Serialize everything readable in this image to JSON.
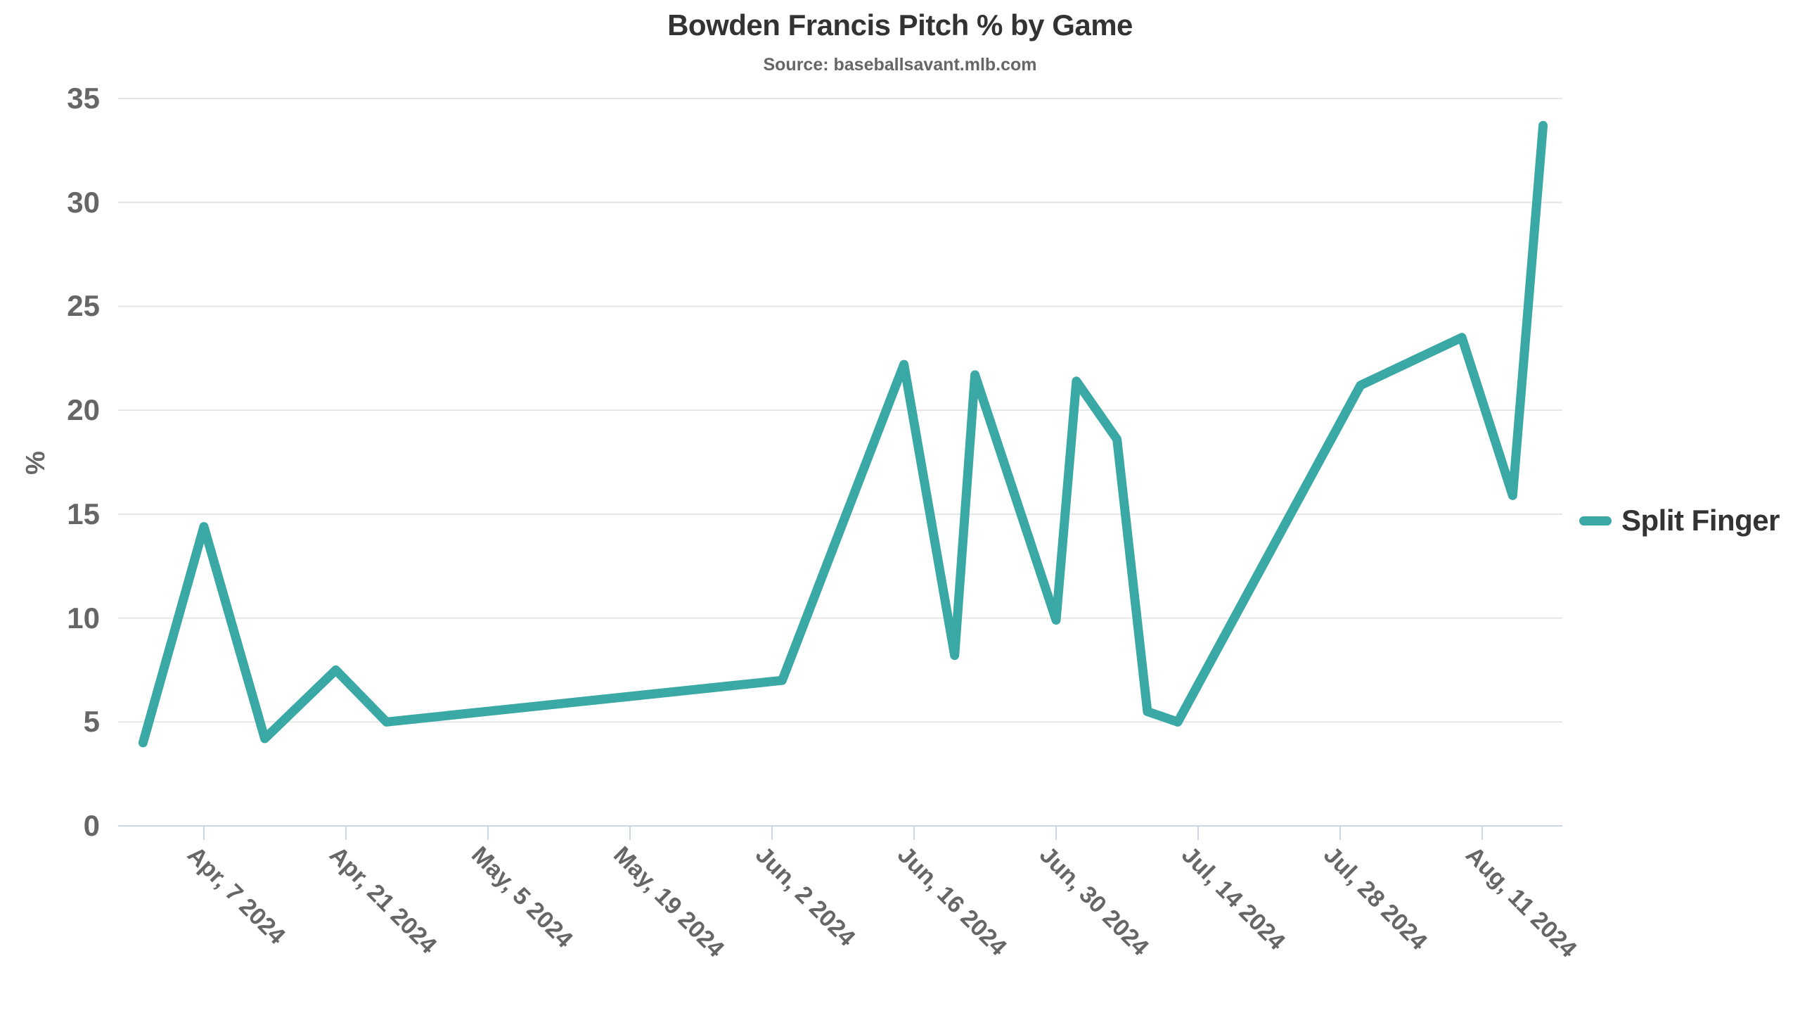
{
  "title": "Bowden Francis Pitch % by Game",
  "subtitle": "Source: baseballsavant.mlb.com",
  "legend": {
    "label": "Split Finger"
  },
  "colors": {
    "series": "#3AA9A5",
    "title_text": "#333333",
    "axis_text": "#666666",
    "grid_line": "#E6E6E6",
    "axis_line": "#CCD6EB"
  },
  "y_axis": {
    "title": "%",
    "ticks": [
      0,
      5,
      10,
      15,
      20,
      25,
      30,
      35
    ]
  },
  "x_axis": {
    "ticks": [
      {
        "date": "2024-04-07",
        "label": "Apr, 7 2024"
      },
      {
        "date": "2024-04-21",
        "label": "Apr, 21 2024"
      },
      {
        "date": "2024-05-05",
        "label": "May, 5 2024"
      },
      {
        "date": "2024-05-19",
        "label": "May, 19 2024"
      },
      {
        "date": "2024-06-02",
        "label": "Jun, 2 2024"
      },
      {
        "date": "2024-06-16",
        "label": "Jun, 16 2024"
      },
      {
        "date": "2024-06-30",
        "label": "Jun, 30 2024"
      },
      {
        "date": "2024-07-14",
        "label": "Jul, 14 2024"
      },
      {
        "date": "2024-07-28",
        "label": "Jul, 28 2024"
      },
      {
        "date": "2024-08-11",
        "label": "Aug, 11 2024"
      }
    ]
  },
  "chart_data": {
    "type": "line",
    "title": "Bowden Francis Pitch % by Game",
    "subtitle": "Source: baseballsavant.mlb.com",
    "xlabel": "",
    "ylabel": "%",
    "ylim": [
      0,
      35
    ],
    "grid": true,
    "legend_position": "right",
    "series": [
      {
        "name": "Split Finger",
        "color": "#3AA9A5",
        "points": [
          {
            "date": "2024-04-01",
            "value": 4.0
          },
          {
            "date": "2024-04-07",
            "value": 14.4
          },
          {
            "date": "2024-04-13",
            "value": 4.2
          },
          {
            "date": "2024-04-20",
            "value": 7.5
          },
          {
            "date": "2024-04-25",
            "value": 5.0
          },
          {
            "date": "2024-06-03",
            "value": 7.0
          },
          {
            "date": "2024-06-15",
            "value": 22.2
          },
          {
            "date": "2024-06-20",
            "value": 8.2
          },
          {
            "date": "2024-06-22",
            "value": 21.7
          },
          {
            "date": "2024-06-30",
            "value": 9.9
          },
          {
            "date": "2024-07-02",
            "value": 21.4
          },
          {
            "date": "2024-07-06",
            "value": 18.6
          },
          {
            "date": "2024-07-09",
            "value": 5.5
          },
          {
            "date": "2024-07-12",
            "value": 5.0
          },
          {
            "date": "2024-07-30",
            "value": 21.2
          },
          {
            "date": "2024-08-09",
            "value": 23.5
          },
          {
            "date": "2024-08-14",
            "value": 15.9
          },
          {
            "date": "2024-08-17",
            "value": 33.7
          }
        ]
      }
    ]
  }
}
